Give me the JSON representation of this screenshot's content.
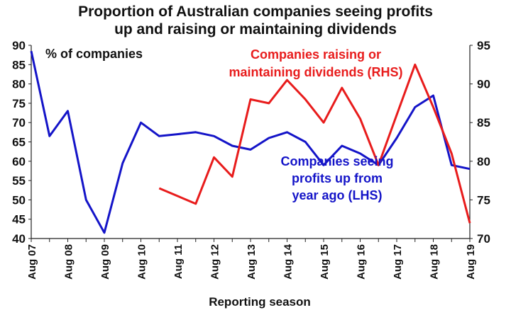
{
  "chart_data": {
    "type": "line",
    "title_line1": "Proportion of Australian companies seeing profits",
    "title_line2": "up and raising or maintaining dividends",
    "xlabel": "Reporting season",
    "left_axis_label": "% of companies",
    "left_ylim": [
      40,
      90
    ],
    "left_ticks": [
      "40",
      "45",
      "50",
      "55",
      "60",
      "65",
      "70",
      "75",
      "80",
      "85",
      "90"
    ],
    "right_ylim": [
      70,
      95
    ],
    "right_ticks": [
      "70",
      "75",
      "80",
      "85",
      "90",
      "95"
    ],
    "x_ticks": [
      "Aug 07",
      "Aug 08",
      "Aug 09",
      "Aug 10",
      "Aug 11",
      "Aug 12",
      "Aug 13",
      "Aug 14",
      "Aug 15",
      "Aug 16",
      "Aug 17",
      "Aug 18",
      "Aug 19"
    ],
    "x_range": [
      2007.5,
      2019.5
    ],
    "series": [
      {
        "name": "Companies seeing profits up from year ago (LHS)",
        "label_lines": [
          "Companies seeing",
          "profits up from",
          "year ago (LHS)"
        ],
        "axis": "left",
        "color": "#1414c8",
        "x": [
          2007.5,
          2008.0,
          2008.5,
          2009.0,
          2009.5,
          2010.0,
          2010.5,
          2011.0,
          2011.5,
          2012.0,
          2012.5,
          2013.0,
          2013.5,
          2014.0,
          2014.5,
          2015.0,
          2015.5,
          2016.0,
          2016.5,
          2017.0,
          2017.5,
          2018.0,
          2018.5,
          2019.0,
          2019.5
        ],
        "values": [
          88.5,
          66.5,
          73,
          50,
          41.5,
          59.5,
          70,
          66.5,
          67,
          67.5,
          66.5,
          64,
          63,
          66,
          67.5,
          65,
          59,
          64,
          62,
          59,
          66,
          74,
          77,
          59,
          58
        ]
      },
      {
        "name": "Companies raising or maintaining dividends (RHS)",
        "label_lines": [
          "Companies raising or",
          "maintaining dividends (RHS)"
        ],
        "axis": "right",
        "color": "#e81c1c",
        "x": [
          2011.0,
          2012.0,
          2012.5,
          2013.0,
          2013.5,
          2014.0,
          2014.5,
          2015.0,
          2015.5,
          2016.0,
          2016.5,
          2017.0,
          2017.5,
          2018.0,
          2018.5,
          2019.0,
          2019.5
        ],
        "values": [
          76.5,
          74.5,
          80.5,
          78,
          88,
          87.5,
          90.5,
          88,
          85,
          89.5,
          85.5,
          79.5,
          86,
          92.5,
          87,
          81,
          72
        ]
      }
    ]
  }
}
